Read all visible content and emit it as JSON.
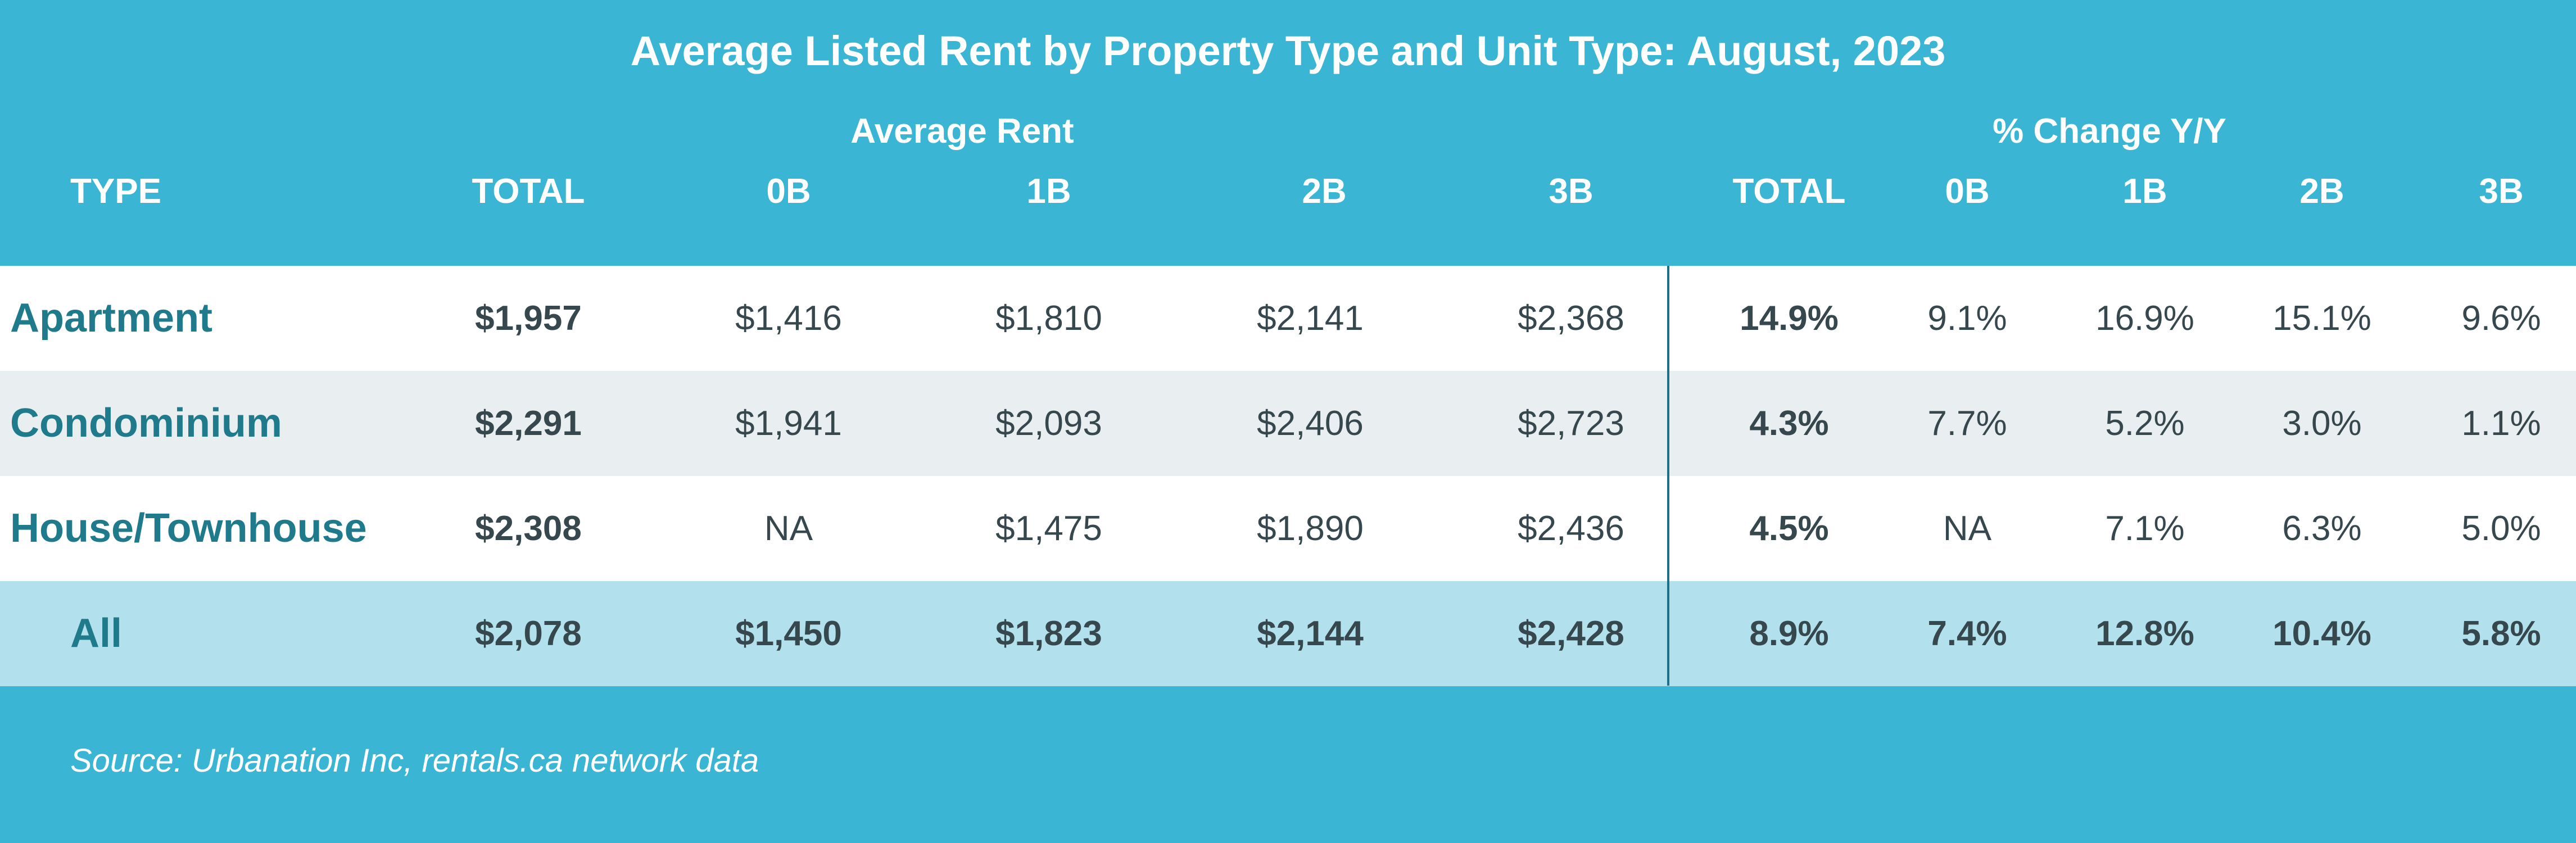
{
  "title": "Average Listed Rent by Property Type and Unit Type: August, 2023",
  "groups": {
    "avg_rent": "Average Rent",
    "pct_change": "% Change Y/Y"
  },
  "headers": [
    "TYPE",
    "TOTAL",
    "0B",
    "1B",
    "2B",
    "3B",
    "TOTAL",
    "0B",
    "1B",
    "2B",
    "3B"
  ],
  "rows": [
    {
      "label": "Apartment",
      "cells": [
        "$1,957",
        "$1,416",
        "$1,810",
        "$2,141",
        "$2,368",
        "14.9%",
        "9.1%",
        "16.9%",
        "15.1%",
        "9.6%"
      ]
    },
    {
      "label": "Condominium",
      "cells": [
        "$2,291",
        "$1,941",
        "$2,093",
        "$2,406",
        "$2,723",
        "4.3%",
        "7.7%",
        "5.2%",
        "3.0%",
        "1.1%"
      ]
    },
    {
      "label": "House/Townhouse",
      "cells": [
        "$2,308",
        "NA",
        "$1,475",
        "$1,890",
        "$2,436",
        "4.5%",
        "NA",
        "7.1%",
        "6.3%",
        "5.0%"
      ]
    },
    {
      "label": "All",
      "cells": [
        "$2,078",
        "$1,450",
        "$1,823",
        "$2,144",
        "$2,428",
        "8.9%",
        "7.4%",
        "12.8%",
        "10.4%",
        "5.8%"
      ]
    }
  ],
  "source": "Source: Urbanation Inc, rentals.ca network data",
  "colors": {
    "header_bg": "#3bb5d4",
    "row_label": "#1f7a8c",
    "all_row_bg": "#b2e0ec",
    "alt_row_bg": "#e9eef0"
  }
}
